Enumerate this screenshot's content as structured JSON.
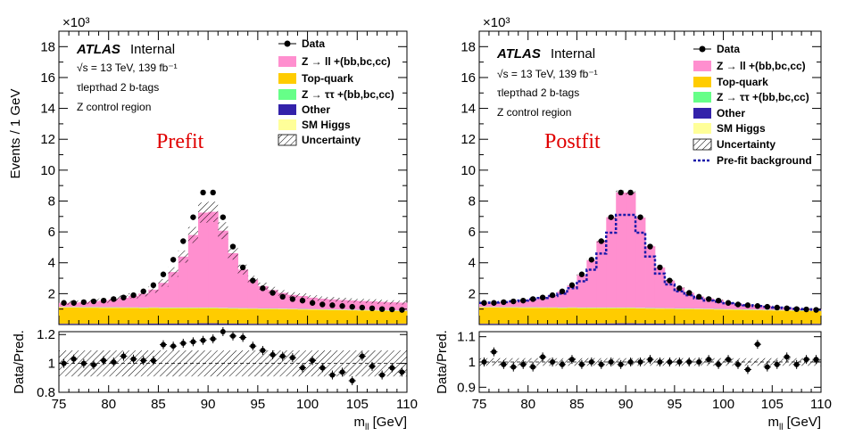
{
  "colors": {
    "zll": "#ff8fcf",
    "top": "#ffcc00",
    "ztt": "#66ff88",
    "other": "#3322aa",
    "higgs": "#ffff99",
    "prefit_line": "#1a1aaa"
  },
  "chart_data": [
    {
      "type": "histogram-stack",
      "big_label": "Prefit",
      "atlas": "ATLAS",
      "internal": "Internal",
      "info": [
        "√s = 13 TeV, 139 fb⁻¹",
        "τlepτhad 2 b-tags",
        "Z control region"
      ],
      "exponent": "×10³",
      "ylabel": "Events / 1 GeV",
      "xlabel": "mll [GeV]",
      "ratio_ylabel": "Data/Pred.",
      "xlim": [
        75,
        110
      ],
      "ylim": [
        0,
        19
      ],
      "ratio_ylim": [
        0.8,
        1.22
      ],
      "x_ticks": [
        75,
        80,
        85,
        90,
        95,
        100,
        105,
        110
      ],
      "y_ticks": [
        2,
        4,
        6,
        8,
        10,
        12,
        14,
        16,
        18
      ],
      "ratio_ticks": [
        0.8,
        1,
        1.2
      ],
      "legend": [
        "Data",
        "Z → ll +(bb,bc,cc)",
        "Top-quark",
        "Z → ττ +(bb,bc,cc)",
        "Other",
        "SM Higgs",
        "Uncertainty"
      ],
      "bin_centers": [
        75.5,
        76.5,
        77.5,
        78.5,
        79.5,
        80.5,
        81.5,
        82.5,
        83.5,
        84.5,
        85.5,
        86.5,
        87.5,
        88.5,
        89.5,
        90.5,
        91.5,
        92.5,
        93.5,
        94.5,
        95.5,
        96.5,
        97.5,
        98.5,
        99.5,
        100.5,
        101.5,
        102.5,
        103.5,
        104.5,
        105.5,
        106.5,
        107.5,
        108.5,
        109.5
      ],
      "data": [
        1.4,
        1.4,
        1.45,
        1.5,
        1.55,
        1.65,
        1.75,
        1.9,
        2.15,
        2.55,
        3.25,
        4.2,
        5.4,
        6.95,
        8.55,
        8.55,
        6.95,
        5.05,
        3.7,
        2.85,
        2.35,
        2.05,
        1.8,
        1.65,
        1.55,
        1.4,
        1.3,
        1.25,
        1.2,
        1.15,
        1.1,
        1.05,
        1.0,
        0.98,
        0.95
      ],
      "series": [
        {
          "name": "Other",
          "values": [
            0.05,
            0.05,
            0.05,
            0.05,
            0.05,
            0.05,
            0.05,
            0.05,
            0.05,
            0.06,
            0.06,
            0.06,
            0.07,
            0.07,
            0.08,
            0.08,
            0.07,
            0.06,
            0.06,
            0.05,
            0.05,
            0.05,
            0.05,
            0.05,
            0.05,
            0.05,
            0.05,
            0.05,
            0.05,
            0.05,
            0.05,
            0.05,
            0.05,
            0.05,
            0.05
          ]
        },
        {
          "name": "Top-quark",
          "values": [
            1.05,
            1.05,
            1.04,
            1.04,
            1.03,
            1.03,
            1.02,
            1.02,
            1.01,
            1.01,
            1.0,
            1.0,
            0.99,
            0.99,
            0.98,
            0.98,
            0.97,
            0.97,
            0.96,
            0.96,
            0.95,
            0.95,
            0.94,
            0.93,
            0.92,
            0.91,
            0.9,
            0.89,
            0.88,
            0.87,
            0.86,
            0.85,
            0.84,
            0.83,
            0.82
          ]
        },
        {
          "name": "SM Higgs",
          "values": [
            0.02,
            0.02,
            0.02,
            0.02,
            0.02,
            0.02,
            0.02,
            0.02,
            0.02,
            0.02,
            0.02,
            0.02,
            0.02,
            0.02,
            0.02,
            0.02,
            0.02,
            0.02,
            0.02,
            0.02,
            0.02,
            0.02,
            0.02,
            0.02,
            0.02,
            0.02,
            0.02,
            0.02,
            0.02,
            0.02,
            0.02,
            0.02,
            0.02,
            0.02,
            0.02
          ]
        },
        {
          "name": "Z → ττ +(bb,bc,cc)",
          "values": [
            0.02,
            0.02,
            0.02,
            0.02,
            0.02,
            0.02,
            0.02,
            0.02,
            0.02,
            0.02,
            0.02,
            0.02,
            0.02,
            0.02,
            0.02,
            0.02,
            0.02,
            0.02,
            0.02,
            0.02,
            0.02,
            0.02,
            0.02,
            0.02,
            0.02,
            0.02,
            0.02,
            0.02,
            0.02,
            0.02,
            0.02,
            0.02,
            0.02,
            0.02,
            0.02
          ]
        },
        {
          "name": "Z → ll +(bb,bc,cc)",
          "values": [
            0.26,
            0.28,
            0.32,
            0.37,
            0.43,
            0.52,
            0.62,
            0.75,
            0.9,
            1.15,
            1.6,
            2.3,
            3.3,
            4.7,
            6.15,
            6.2,
            5.0,
            3.55,
            2.5,
            1.85,
            1.45,
            1.2,
            1.02,
            0.9,
            0.84,
            0.74,
            0.68,
            0.65,
            0.62,
            0.6,
            0.58,
            0.56,
            0.54,
            0.52,
            0.51
          ]
        }
      ],
      "uncert_frac": 0.09,
      "ratio": [
        1.0,
        1.03,
        1.0,
        0.99,
        1.02,
        1.01,
        1.05,
        1.03,
        1.02,
        1.02,
        1.13,
        1.12,
        1.14,
        1.15,
        1.16,
        1.17,
        1.22,
        1.19,
        1.18,
        1.12,
        1.09,
        1.06,
        1.05,
        1.04,
        0.97,
        1.02,
        0.97,
        0.92,
        0.94,
        0.88,
        1.05,
        0.98,
        0.92,
        0.97,
        0.94
      ],
      "ratio_band": 0.09,
      "prefit_line": null
    },
    {
      "type": "histogram-stack",
      "big_label": "Postfit",
      "atlas": "ATLAS",
      "internal": "Internal",
      "info": [
        "√s = 13 TeV, 139 fb⁻¹",
        "τlepτhad 2 b-tags",
        "Z control region"
      ],
      "exponent": "×10³",
      "ylabel": "",
      "xlabel": "mll [GeV]",
      "ratio_ylabel": "Data/Pred.",
      "xlim": [
        75,
        110
      ],
      "ylim": [
        0,
        19
      ],
      "ratio_ylim": [
        0.88,
        1.12
      ],
      "x_ticks": [
        75,
        80,
        85,
        90,
        95,
        100,
        105,
        110
      ],
      "y_ticks": [
        2,
        4,
        6,
        8,
        10,
        12,
        14,
        16,
        18
      ],
      "ratio_ticks": [
        0.9,
        1,
        1.1
      ],
      "legend": [
        "Data",
        "Z → ll +(bb,bc,cc)",
        "Top-quark",
        "Z → ττ +(bb,bc,cc)",
        "Other",
        "SM Higgs",
        "Uncertainty",
        "Pre-fit background"
      ],
      "bin_centers": [
        75.5,
        76.5,
        77.5,
        78.5,
        79.5,
        80.5,
        81.5,
        82.5,
        83.5,
        84.5,
        85.5,
        86.5,
        87.5,
        88.5,
        89.5,
        90.5,
        91.5,
        92.5,
        93.5,
        94.5,
        95.5,
        96.5,
        97.5,
        98.5,
        99.5,
        100.5,
        101.5,
        102.5,
        103.5,
        104.5,
        105.5,
        106.5,
        107.5,
        108.5,
        109.5
      ],
      "data": [
        1.4,
        1.4,
        1.45,
        1.5,
        1.55,
        1.65,
        1.75,
        1.9,
        2.15,
        2.55,
        3.25,
        4.2,
        5.4,
        6.95,
        8.55,
        8.55,
        6.95,
        5.05,
        3.7,
        2.85,
        2.35,
        2.05,
        1.8,
        1.65,
        1.55,
        1.4,
        1.3,
        1.25,
        1.2,
        1.15,
        1.1,
        1.05,
        1.0,
        0.98,
        0.95
      ],
      "series": [
        {
          "name": "Other",
          "values": [
            0.05,
            0.05,
            0.05,
            0.05,
            0.05,
            0.05,
            0.05,
            0.05,
            0.05,
            0.06,
            0.06,
            0.06,
            0.07,
            0.07,
            0.08,
            0.08,
            0.07,
            0.06,
            0.06,
            0.05,
            0.05,
            0.05,
            0.05,
            0.05,
            0.05,
            0.05,
            0.05,
            0.05,
            0.05,
            0.05,
            0.05,
            0.05,
            0.05,
            0.05,
            0.05
          ]
        },
        {
          "name": "Top-quark",
          "values": [
            1.05,
            1.05,
            1.04,
            1.04,
            1.03,
            1.03,
            1.02,
            1.02,
            1.01,
            1.01,
            1.0,
            1.0,
            0.99,
            0.99,
            0.98,
            0.98,
            0.97,
            0.97,
            0.96,
            0.96,
            0.95,
            0.95,
            0.94,
            0.93,
            0.92,
            0.91,
            0.9,
            0.89,
            0.88,
            0.87,
            0.86,
            0.85,
            0.84,
            0.83,
            0.82
          ]
        },
        {
          "name": "SM Higgs",
          "values": [
            0.02,
            0.02,
            0.02,
            0.02,
            0.02,
            0.02,
            0.02,
            0.02,
            0.02,
            0.02,
            0.02,
            0.02,
            0.02,
            0.02,
            0.02,
            0.02,
            0.02,
            0.02,
            0.02,
            0.02,
            0.02,
            0.02,
            0.02,
            0.02,
            0.02,
            0.02,
            0.02,
            0.02,
            0.02,
            0.02,
            0.02,
            0.02,
            0.02,
            0.02,
            0.02
          ]
        },
        {
          "name": "Z → ττ +(bb,bc,cc)",
          "values": [
            0.02,
            0.02,
            0.02,
            0.02,
            0.02,
            0.02,
            0.02,
            0.02,
            0.02,
            0.02,
            0.02,
            0.02,
            0.02,
            0.02,
            0.02,
            0.02,
            0.02,
            0.02,
            0.02,
            0.02,
            0.02,
            0.02,
            0.02,
            0.02,
            0.02,
            0.02,
            0.02,
            0.02,
            0.02,
            0.02,
            0.02,
            0.02,
            0.02,
            0.02,
            0.02
          ]
        },
        {
          "name": "Z → ll +(bb,bc,cc)",
          "values": [
            0.26,
            0.26,
            0.32,
            0.37,
            0.43,
            0.53,
            0.64,
            0.79,
            1.04,
            1.42,
            2.1,
            3.07,
            4.3,
            5.85,
            7.45,
            7.45,
            5.85,
            4.0,
            2.63,
            1.8,
            1.35,
            1.02,
            0.79,
            0.67,
            0.58,
            0.44,
            0.35,
            0.31,
            0.28,
            0.24,
            0.2,
            0.16,
            0.12,
            0.11,
            0.09
          ]
        }
      ],
      "uncert_frac": 0.015,
      "ratio": [
        1.0,
        1.04,
        0.99,
        0.98,
        0.99,
        0.98,
        1.02,
        1.0,
        0.99,
        1.01,
        0.99,
        1.0,
        0.99,
        1.0,
        0.99,
        1.0,
        1.0,
        1.01,
        1.0,
        1.0,
        1.0,
        1.0,
        1.0,
        1.01,
        0.99,
        1.01,
        0.99,
        0.97,
        1.07,
        0.98,
        0.99,
        1.02,
        0.99,
        1.01,
        1.01
      ],
      "ratio_band": 0.015,
      "prefit_line": [
        1.4,
        1.42,
        1.45,
        1.5,
        1.55,
        1.63,
        1.72,
        1.85,
        2.0,
        2.35,
        2.8,
        3.55,
        4.6,
        5.95,
        7.1,
        7.1,
        5.95,
        4.4,
        3.3,
        2.6,
        2.15,
        1.9,
        1.7,
        1.55,
        1.48,
        1.38,
        1.3,
        1.25,
        1.2,
        1.15,
        1.1,
        1.06,
        1.02,
        0.99,
        0.96
      ]
    }
  ]
}
